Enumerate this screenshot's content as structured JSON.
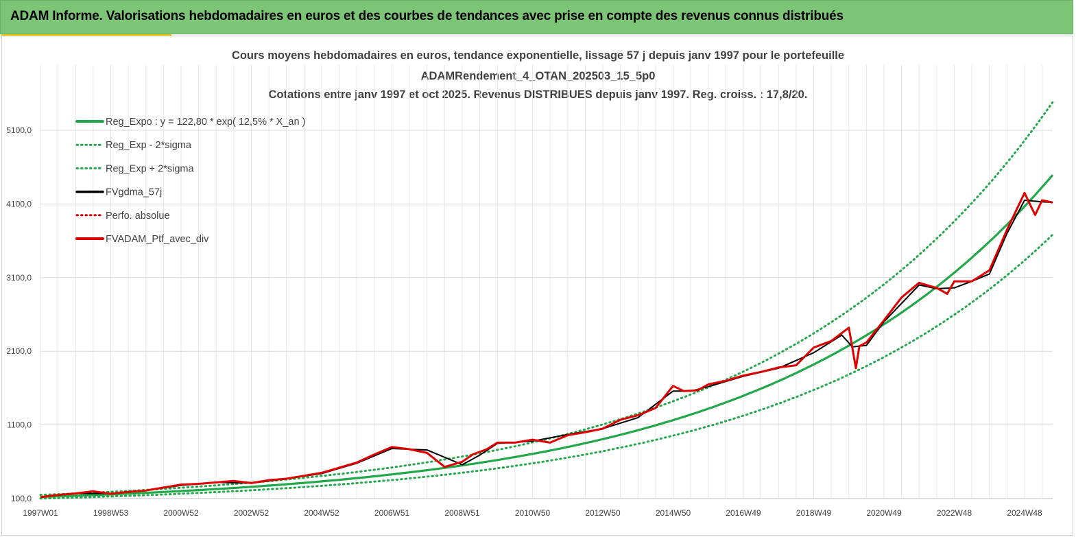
{
  "banner": {
    "title": "ADAM Informe. Valorisations hebdomadaires en euros et des courbes de tendances avec prise en compte des revenus connus distribués"
  },
  "colors": {
    "banner_bg": "#7cc576",
    "accent": "#f5c400",
    "trend": "#22a84a",
    "smooth": "#000000",
    "portfolio": "#e00000"
  },
  "chart_data": {
    "type": "line",
    "title_lines": [
      "Cours moyens hebdomadaires  en euros, tendance exponentielle, lissage 57 j depuis janv 1997 pour le portefeuille",
      "ADAMRendement_4_OTAN_202503_15_5p0",
      "Cotations  entre janv 1997 et oct 2025. Revenus DISTRIBUES depuis janv 1997. Reg. croiss. : 17,8/20."
    ],
    "x_ticks": [
      "1997W01",
      "1998W53",
      "2000W52",
      "2002W52",
      "2004W52",
      "2006W51",
      "2008W51",
      "2010W50",
      "2012W50",
      "2014W50",
      "2016W49",
      "2018W49",
      "2020W49",
      "2022W48",
      "2024W48"
    ],
    "x_tick_years": [
      1997,
      1999,
      2001,
      2003,
      2005,
      2007,
      2009,
      2011,
      2013,
      2015,
      2017,
      2019,
      2021,
      2023,
      2025
    ],
    "x_range": [
      1997,
      2025.8
    ],
    "y_ticks": [
      "100,0",
      "1100,0",
      "2100,0",
      "3100,0",
      "4100,0",
      "5100,0"
    ],
    "y_tick_values": [
      100,
      1100,
      2100,
      3100,
      4100,
      5100
    ],
    "ylim": [
      100,
      5100
    ],
    "grid": true,
    "legend_position": "top-left",
    "trend_model": {
      "a": 122.8,
      "rate": 0.125
    },
    "sigma_factor": 1.22,
    "series": [
      {
        "name": "Reg_Expo : y = 122,80 * exp( 12,5% *  X_an )",
        "style": "solid-thick",
        "color": "#22a84a"
      },
      {
        "name": "Reg_Exp - 2*sigma",
        "style": "dotted",
        "color": "#22a84a"
      },
      {
        "name": "Reg_Exp + 2*sigma",
        "style": "dotted",
        "color": "#22a84a"
      },
      {
        "name": "FVgdma_57j",
        "style": "solid",
        "color": "#000000"
      },
      {
        "name": "Perfo. absolue",
        "style": "dotted",
        "color": "#e00000"
      },
      {
        "name": "FVADAM_Ptf_avec_div",
        "style": "solid-thick",
        "color": "#e00000"
      }
    ],
    "portfolio_points": {
      "x": [
        1997.0,
        1997.5,
        1998.0,
        1998.5,
        1999.0,
        1999.5,
        2000.0,
        2000.5,
        2001.0,
        2001.5,
        2002.0,
        2002.5,
        2003.0,
        2003.5,
        2004.0,
        2004.5,
        2005.0,
        2005.5,
        2006.0,
        2006.5,
        2007.0,
        2007.5,
        2008.0,
        2008.5,
        2009.0,
        2009.3,
        2009.7,
        2010.0,
        2010.5,
        2011.0,
        2011.5,
        2012.0,
        2012.5,
        2013.0,
        2013.5,
        2014.0,
        2014.5,
        2015.0,
        2015.3,
        2015.7,
        2016.0,
        2016.5,
        2017.0,
        2017.5,
        2018.0,
        2018.5,
        2019.0,
        2019.5,
        2020.0,
        2020.2,
        2020.3,
        2020.5,
        2021.0,
        2021.5,
        2022.0,
        2022.2,
        2022.5,
        2022.8,
        2023.0,
        2023.5,
        2024.0,
        2024.5,
        2024.8,
        2025.0,
        2025.3,
        2025.5,
        2025.8
      ],
      "y": [
        120,
        150,
        170,
        200,
        165,
        190,
        210,
        250,
        290,
        300,
        320,
        340,
        310,
        350,
        370,
        410,
        450,
        520,
        590,
        700,
        800,
        770,
        720,
        530,
        600,
        700,
        770,
        860,
        860,
        900,
        860,
        960,
        1000,
        1050,
        1170,
        1230,
        1330,
        1630,
        1560,
        1570,
        1650,
        1700,
        1770,
        1820,
        1880,
        1910,
        2150,
        2240,
        2420,
        1870,
        2170,
        2220,
        2520,
        2830,
        3030,
        3000,
        2960,
        2880,
        3050,
        3050,
        3200,
        3750,
        4050,
        4250,
        3950,
        4150,
        4120
      ]
    },
    "smooth_points": {
      "x": [
        1997.0,
        1998.0,
        1999.0,
        2000.0,
        2001.0,
        2002.0,
        2003.0,
        2004.0,
        2005.0,
        2006.0,
        2007.0,
        2008.0,
        2009.0,
        2009.5,
        2010.0,
        2011.0,
        2012.0,
        2013.0,
        2014.0,
        2015.0,
        2015.5,
        2016.0,
        2017.0,
        2018.0,
        2019.0,
        2019.8,
        2020.1,
        2020.5,
        2021.0,
        2022.0,
        2022.5,
        2023.0,
        2023.5,
        2024.0,
        2024.5,
        2025.0,
        2025.5,
        2025.8
      ],
      "y": [
        120,
        170,
        170,
        210,
        280,
        320,
        310,
        370,
        440,
        580,
        780,
        760,
        560,
        690,
        850,
        880,
        970,
        1050,
        1200,
        1560,
        1560,
        1620,
        1760,
        1870,
        2080,
        2320,
        2160,
        2180,
        2500,
        3000,
        2950,
        2960,
        3050,
        3150,
        3700,
        4150,
        4130,
        4120
      ]
    }
  }
}
